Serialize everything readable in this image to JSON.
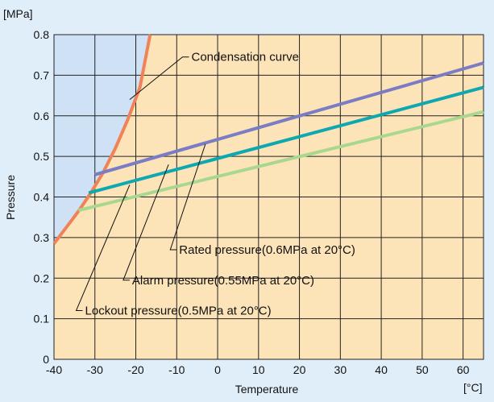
{
  "chart_data": {
    "type": "line",
    "title": "",
    "xlabel": "Temperature",
    "ylabel": "Pressure",
    "x_unit": "[°C]",
    "y_unit": "[MPa]",
    "xlim": [
      -40,
      65
    ],
    "ylim": [
      0,
      0.8
    ],
    "x_ticks": [
      "-40",
      "-30",
      "-20",
      "-10",
      "0",
      "10",
      "20",
      "30",
      "40",
      "50",
      "60"
    ],
    "y_ticks": [
      "0",
      "0.1",
      "0.2",
      "0.3",
      "0.4",
      "0.5",
      "0.6",
      "0.7",
      "0.8"
    ],
    "grid": true,
    "series": [
      {
        "name": "Condensation curve",
        "color": "#f0825a",
        "x": [
          -40,
          -37,
          -34,
          -31,
          -28,
          -25,
          -22,
          -19,
          -16.5
        ],
        "y": [
          0.285,
          0.325,
          0.365,
          0.41,
          0.46,
          0.52,
          0.59,
          0.67,
          0.8
        ]
      },
      {
        "name": "Rated pressure(0.6MPa at 20°C)",
        "color": "#7a7cc4",
        "x": [
          -30,
          65
        ],
        "y": [
          0.455,
          0.73
        ]
      },
      {
        "name": "Alarm pressure(0.55MPa at 20°C)",
        "color": "#10a8b0",
        "x": [
          -31.5,
          65
        ],
        "y": [
          0.41,
          0.67
        ]
      },
      {
        "name": "Lockout pressure(0.5MPa at 20°C)",
        "color": "#a8d890",
        "x": [
          -34,
          65
        ],
        "y": [
          0.367,
          0.61
        ]
      }
    ],
    "annotations": [
      {
        "text": "Condensation curve",
        "target_x": -21.5,
        "target_y": 0.64,
        "label_x": -7,
        "label_y": 0.745
      },
      {
        "text": "Rated pressure(0.6MPa at 20°C)",
        "target_x": -3,
        "target_y": 0.53,
        "label_x": -10,
        "label_y": 0.27
      },
      {
        "text": "Alarm pressure(0.55MPa at 20°C)",
        "target_x": -12,
        "target_y": 0.48,
        "label_x": -21.5,
        "label_y": 0.195
      },
      {
        "text": "Lockout pressure(0.5MPa at 20°C)",
        "target_x": -21.5,
        "target_y": 0.43,
        "label_x": -33,
        "label_y": 0.12
      }
    ],
    "colors": {
      "background": "#e0eef9",
      "plot_area": "#fde4b8",
      "condensation_region": "#cfe2f5",
      "grid": "#222222"
    }
  }
}
